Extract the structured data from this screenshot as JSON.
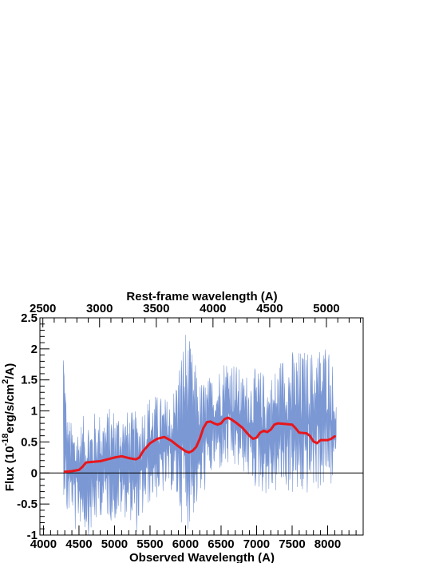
{
  "chart_data": {
    "type": "line",
    "title": "",
    "xlabel": "Observed Wavelength (A)",
    "ylabel_parts": {
      "prefix": "Flux (10",
      "exp1": "-18",
      "mid": "erg/s/cm",
      "exp2": "2",
      "suffix": "/A)"
    },
    "top_xlabel": "Rest-frame wavelength (A)",
    "xlim": [
      3950,
      8500
    ],
    "ylim": [
      -1,
      2.5
    ],
    "top_xlim": [
      2474,
      5324
    ],
    "x_ticks": [
      "4000",
      "4500",
      "5000",
      "5500",
      "6000",
      "6500",
      "7000",
      "7500",
      "8000"
    ],
    "y_ticks": [
      "-1",
      "-0.5",
      "0",
      "0.5",
      "1",
      "1.5",
      "2",
      "2.5"
    ],
    "top_ticks": [
      "2500",
      "3000",
      "3500",
      "4000",
      "4500",
      "5000"
    ],
    "colors": {
      "spectrum": "#7b98d4",
      "smoothed": "#e8161b",
      "axes": "#000000"
    },
    "series": [
      {
        "style": "filled-noisy-spectrum",
        "x_start": 4280,
        "x_end": 8120,
        "envelope": [
          [
            4280,
            -0.3,
            2.5
          ],
          [
            4330,
            -0.8,
            1.0
          ],
          [
            4400,
            -0.6,
            0.8
          ],
          [
            4450,
            -1.0,
            0.9
          ],
          [
            4500,
            -0.8,
            0.8
          ],
          [
            4600,
            -1.0,
            1.0
          ],
          [
            4700,
            -1.0,
            1.0
          ],
          [
            4800,
            -0.7,
            1.0
          ],
          [
            5000,
            -0.8,
            1.1
          ],
          [
            5200,
            -0.7,
            1.0
          ],
          [
            5300,
            -1.0,
            1.0
          ],
          [
            5500,
            -0.5,
            1.3
          ],
          [
            5800,
            -0.3,
            1.2
          ],
          [
            6000,
            -1.0,
            2.4
          ],
          [
            6200,
            -0.5,
            1.5
          ],
          [
            6400,
            0.0,
            1.6
          ],
          [
            6600,
            0.0,
            2.0
          ],
          [
            6800,
            0.0,
            1.6
          ],
          [
            7000,
            -0.3,
            1.7
          ],
          [
            7200,
            -0.4,
            1.6
          ],
          [
            7400,
            -0.3,
            2.0
          ],
          [
            7600,
            -0.5,
            2.0
          ],
          [
            7800,
            -0.3,
            2.0
          ],
          [
            8000,
            -0.3,
            2.2
          ],
          [
            8120,
            -0.2,
            1.5
          ]
        ]
      },
      {
        "style": "smoothed-line",
        "points": [
          [
            4300,
            0.02
          ],
          [
            4400,
            0.03
          ],
          [
            4500,
            0.05
          ],
          [
            4550,
            0.1
          ],
          [
            4600,
            0.17
          ],
          [
            4700,
            0.18
          ],
          [
            4800,
            0.19
          ],
          [
            4900,
            0.22
          ],
          [
            5000,
            0.25
          ],
          [
            5100,
            0.27
          ],
          [
            5200,
            0.24
          ],
          [
            5300,
            0.22
          ],
          [
            5350,
            0.25
          ],
          [
            5400,
            0.35
          ],
          [
            5500,
            0.48
          ],
          [
            5600,
            0.55
          ],
          [
            5700,
            0.58
          ],
          [
            5800,
            0.52
          ],
          [
            5900,
            0.43
          ],
          [
            6000,
            0.35
          ],
          [
            6050,
            0.33
          ],
          [
            6100,
            0.36
          ],
          [
            6150,
            0.42
          ],
          [
            6200,
            0.55
          ],
          [
            6250,
            0.72
          ],
          [
            6300,
            0.82
          ],
          [
            6350,
            0.83
          ],
          [
            6400,
            0.8
          ],
          [
            6450,
            0.78
          ],
          [
            6500,
            0.8
          ],
          [
            6550,
            0.87
          ],
          [
            6600,
            0.89
          ],
          [
            6650,
            0.86
          ],
          [
            6700,
            0.82
          ],
          [
            6800,
            0.73
          ],
          [
            6900,
            0.6
          ],
          [
            6950,
            0.55
          ],
          [
            7000,
            0.57
          ],
          [
            7050,
            0.65
          ],
          [
            7100,
            0.68
          ],
          [
            7150,
            0.66
          ],
          [
            7200,
            0.7
          ],
          [
            7250,
            0.78
          ],
          [
            7300,
            0.8
          ],
          [
            7400,
            0.79
          ],
          [
            7500,
            0.78
          ],
          [
            7550,
            0.72
          ],
          [
            7600,
            0.65
          ],
          [
            7700,
            0.64
          ],
          [
            7750,
            0.6
          ],
          [
            7800,
            0.51
          ],
          [
            7850,
            0.48
          ],
          [
            7900,
            0.53
          ],
          [
            8000,
            0.53
          ],
          [
            8050,
            0.55
          ],
          [
            8100,
            0.59
          ]
        ]
      }
    ],
    "reference_line_y": 0,
    "grid": false,
    "legend": "none"
  }
}
